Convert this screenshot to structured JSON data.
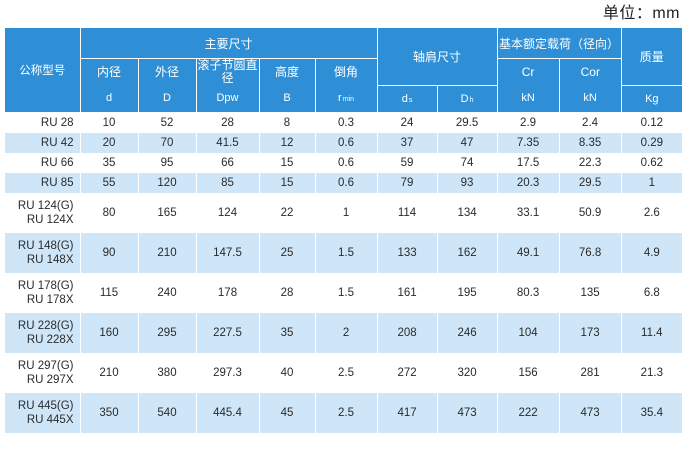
{
  "unit_label": "单位：mm",
  "header": {
    "model": "公称型号",
    "main_dims": "主要尺寸",
    "shoulder_dims": "轴肩尺寸",
    "load_rating": "基本额定载荷（径向）",
    "mass": "质量",
    "inner_diameter": "内径",
    "outer_diameter": "外径",
    "roller_pitch_diameter": "滚子节圆直径",
    "height": "高度",
    "chamfer": "倒角",
    "sym_d": "d",
    "sym_D": "D",
    "sym_Dpw": "Dpw",
    "sym_B": "B",
    "sym_r": "r",
    "sym_r_sub": "min",
    "sym_ds": "d",
    "sym_ds_sub": "s",
    "sym_Dh": "D",
    "sym_Dh_sub": "h",
    "Cr": "Cr",
    "Cor": "Cor",
    "unit_kN_1": "kN",
    "unit_kN_2": "kN",
    "unit_kg": "Kg"
  },
  "rows": [
    {
      "model": [
        "RU 28"
      ],
      "d": "10",
      "D": "52",
      "Dpw": "28",
      "B": "8",
      "r": "0.3",
      "ds": "24",
      "Dh": "29.5",
      "Cr": "2.9",
      "Cor": "2.4",
      "mass": "0.12"
    },
    {
      "model": [
        "RU 42"
      ],
      "d": "20",
      "D": "70",
      "Dpw": "41.5",
      "B": "12",
      "r": "0.6",
      "ds": "37",
      "Dh": "47",
      "Cr": "7.35",
      "Cor": "8.35",
      "mass": "0.29"
    },
    {
      "model": [
        "RU 66"
      ],
      "d": "35",
      "D": "95",
      "Dpw": "66",
      "B": "15",
      "r": "0.6",
      "ds": "59",
      "Dh": "74",
      "Cr": "17.5",
      "Cor": "22.3",
      "mass": "0.62"
    },
    {
      "model": [
        "RU 85"
      ],
      "d": "55",
      "D": "120",
      "Dpw": "85",
      "B": "15",
      "r": "0.6",
      "ds": "79",
      "Dh": "93",
      "Cr": "20.3",
      "Cor": "29.5",
      "mass": "1"
    },
    {
      "model": [
        "RU 124(G)",
        "RU 124X"
      ],
      "d": "80",
      "D": "165",
      "Dpw": "124",
      "B": "22",
      "r": "1",
      "ds": "114",
      "Dh": "134",
      "Cr": "33.1",
      "Cor": "50.9",
      "mass": "2.6"
    },
    {
      "model": [
        "RU 148(G)",
        "RU 148X"
      ],
      "d": "90",
      "D": "210",
      "Dpw": "147.5",
      "B": "25",
      "r": "1.5",
      "ds": "133",
      "Dh": "162",
      "Cr": "49.1",
      "Cor": "76.8",
      "mass": "4.9"
    },
    {
      "model": [
        "RU 178(G)",
        "RU 178X"
      ],
      "d": "115",
      "D": "240",
      "Dpw": "178",
      "B": "28",
      "r": "1.5",
      "ds": "161",
      "Dh": "195",
      "Cr": "80.3",
      "Cor": "135",
      "mass": "6.8"
    },
    {
      "model": [
        "RU 228(G)",
        "RU 228X"
      ],
      "d": "160",
      "D": "295",
      "Dpw": "227.5",
      "B": "35",
      "r": "2",
      "ds": "208",
      "Dh": "246",
      "Cr": "104",
      "Cor": "173",
      "mass": "11.4"
    },
    {
      "model": [
        "RU 297(G)",
        "RU 297X"
      ],
      "d": "210",
      "D": "380",
      "Dpw": "297.3",
      "B": "40",
      "r": "2.5",
      "ds": "272",
      "Dh": "320",
      "Cr": "156",
      "Cor": "281",
      "mass": "21.3"
    },
    {
      "model": [
        "RU 445(G)",
        "RU 445X"
      ],
      "d": "350",
      "D": "540",
      "Dpw": "445.4",
      "B": "45",
      "r": "2.5",
      "ds": "417",
      "Dh": "473",
      "Cr": "222",
      "Cor": "473",
      "mass": "35.4"
    }
  ]
}
